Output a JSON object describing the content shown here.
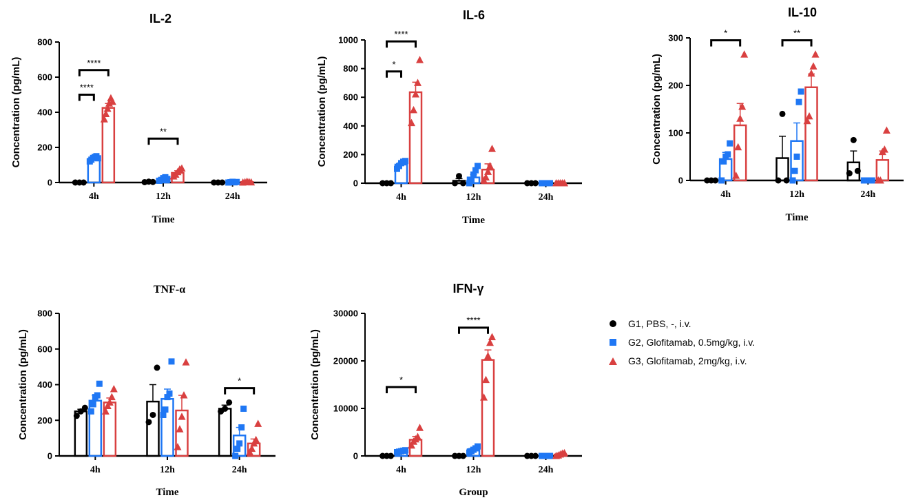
{
  "groups": [
    {
      "name": "G1, PBS, -, i.v.",
      "color": "#000000",
      "marker": "circle"
    },
    {
      "name": "G2, Glofitamab, 0.5mg/kg, i.v.",
      "color": "#1f77f4",
      "marker": "square"
    },
    {
      "name": "G3, Glofitamab, 2mg/kg, i.v.",
      "color": "#d94040",
      "marker": "triangle"
    }
  ],
  "chart_data": [
    {
      "type": "bar",
      "title": "IL-2",
      "title_style": "sans",
      "xlabel": "Time",
      "ylabel": "Concentration (pg/mL)",
      "categories": [
        "4h",
        "12h",
        "24h"
      ],
      "ylim": [
        0,
        800
      ],
      "yticks": [
        0,
        200,
        400,
        600,
        800
      ],
      "series": [
        {
          "name": "G1, PBS, -, i.v.",
          "values": [
            0,
            3,
            0
          ],
          "errors": [
            0,
            0,
            0
          ],
          "points": [
            [
              0,
              0,
              0
            ],
            [
              2,
              5,
              3
            ],
            [
              0,
              0,
              0
            ]
          ]
        },
        {
          "name": "G2, Glofitamab, 0.5mg/kg, i.v.",
          "values": [
            135,
            20,
            2
          ],
          "errors": [
            8,
            8,
            1
          ],
          "points": [
            [
              120,
              130,
              140,
              145,
              150,
              138
            ],
            [
              10,
              15,
              25,
              30,
              20
            ],
            [
              0,
              2,
              4,
              1,
              3
            ]
          ]
        },
        {
          "name": "G3, Glofitamab, 2mg/kg, i.v.",
          "values": [
            425,
            55,
            3
          ],
          "errors": [
            25,
            12,
            1
          ],
          "points": [
            [
              360,
              390,
              420,
              450,
              480,
              460
            ],
            [
              35,
              45,
              60,
              75,
              80
            ],
            [
              0,
              2,
              5,
              3,
              1
            ]
          ]
        }
      ],
      "brackets": [
        {
          "from_cat": 0,
          "from_series": 0,
          "to_cat": 0,
          "to_series": 1,
          "y": 500,
          "label": "****"
        },
        {
          "from_cat": 0,
          "from_series": 0,
          "to_cat": 0,
          "to_series": 2,
          "y": 640,
          "label": "****"
        },
        {
          "from_cat": 1,
          "from_series": 0,
          "to_cat": 1,
          "to_series": 2,
          "y": 250,
          "label": "**"
        }
      ]
    },
    {
      "type": "bar",
      "title": "IL-6",
      "title_style": "sans",
      "xlabel": "Time",
      "ylabel": "Concentration (pg/mL)",
      "categories": [
        "4h",
        "12h",
        "24h"
      ],
      "ylim": [
        0,
        1000
      ],
      "yticks": [
        0,
        200,
        400,
        600,
        800,
        1000
      ],
      "series": [
        {
          "name": "G1, PBS, -, i.v.",
          "values": [
            0,
            17,
            0
          ],
          "errors": [
            0,
            15,
            0
          ],
          "points": [
            [
              0,
              0,
              0
            ],
            [
              0,
              50,
              0
            ],
            [
              0,
              0,
              0
            ]
          ]
        },
        {
          "name": "G2, Glofitamab, 0.5mg/kg, i.v.",
          "values": [
            130,
            40,
            0
          ],
          "errors": [
            15,
            20,
            0
          ],
          "points": [
            [
              100,
              120,
              140,
              150,
              155
            ],
            [
              0,
              20,
              60,
              90,
              120
            ],
            [
              0,
              0,
              0,
              0,
              0
            ]
          ]
        },
        {
          "name": "G3, Glofitamab, 2mg/kg, i.v.",
          "values": [
            635,
            95,
            0
          ],
          "errors": [
            70,
            40,
            0
          ],
          "points": [
            [
              420,
              510,
              620,
              700,
              860
            ],
            [
              20,
              40,
              80,
              120,
              240
            ],
            [
              0,
              0,
              0,
              0,
              0
            ]
          ]
        }
      ],
      "brackets": [
        {
          "from_cat": 0,
          "from_series": 0,
          "to_cat": 0,
          "to_series": 1,
          "y": 780,
          "label": "*"
        },
        {
          "from_cat": 0,
          "from_series": 0,
          "to_cat": 0,
          "to_series": 2,
          "y": 990,
          "label": "****"
        }
      ]
    },
    {
      "type": "bar",
      "title": "IL-10",
      "title_style": "sans",
      "xlabel": "Time",
      "ylabel": "Concentration (pg/mL)",
      "categories": [
        "4h",
        "12h",
        "24h"
      ],
      "ylim": [
        0,
        300
      ],
      "yticks": [
        0,
        100,
        200,
        300
      ],
      "series": [
        {
          "name": "G1, PBS, -, i.v.",
          "values": [
            0,
            47,
            38
          ],
          "errors": [
            0,
            46,
            24
          ],
          "points": [
            [
              0,
              0,
              0
            ],
            [
              0,
              140,
              0
            ],
            [
              15,
              85,
              20
            ]
          ]
        },
        {
          "name": "G2, Glofitamab, 0.5mg/kg, i.v.",
          "values": [
            45,
            83,
            0
          ],
          "errors": [
            14,
            38,
            0
          ],
          "points": [
            [
              0,
              40,
              50,
              55,
              78
            ],
            [
              0,
              20,
              50,
              165,
              187
            ],
            [
              0,
              0,
              0,
              0,
              0
            ]
          ]
        },
        {
          "name": "G3, Glofitamab, 2mg/kg, i.v.",
          "values": [
            116,
            196,
            43
          ],
          "errors": [
            46,
            28,
            19
          ],
          "points": [
            [
              10,
              70,
              130,
              155,
              265
            ],
            [
              125,
              135,
              225,
              240,
              265
            ],
            [
              0,
              0,
              60,
              65,
              105
            ]
          ]
        }
      ],
      "brackets": [
        {
          "from_cat": 0,
          "from_series": 0,
          "to_cat": 0,
          "to_series": 2,
          "y": 295,
          "label": "*"
        },
        {
          "from_cat": 1,
          "from_series": 0,
          "to_cat": 1,
          "to_series": 2,
          "y": 295,
          "label": "**"
        }
      ]
    },
    {
      "type": "bar",
      "title": "TNF-α",
      "title_style": "serif",
      "xlabel": "Time",
      "ylabel": "Concentration (pg/mL)",
      "categories": [
        "4h",
        "12h",
        "24h"
      ],
      "ylim": [
        0,
        800
      ],
      "yticks": [
        0,
        200,
        400,
        600,
        800
      ],
      "series": [
        {
          "name": "G1, PBS, -, i.v.",
          "values": [
            250,
            305,
            265
          ],
          "errors": [
            12,
            95,
            20
          ],
          "points": [
            [
              225,
              250,
              270
            ],
            [
              190,
              230,
              495
            ],
            [
              250,
              265,
              300
            ]
          ]
        },
        {
          "name": "G2, Glofitamab, 0.5mg/kg, i.v.",
          "values": [
            310,
            320,
            115
          ],
          "errors": [
            30,
            55,
            45
          ],
          "points": [
            [
              250,
              290,
              330,
              340,
              405
            ],
            [
              230,
              260,
              330,
              350,
              530
            ],
            [
              0,
              40,
              70,
              160,
              265
            ]
          ]
        },
        {
          "name": "G3, Glofitamab, 2mg/kg, i.v.",
          "values": [
            300,
            255,
            70
          ],
          "errors": [
            25,
            85,
            25
          ],
          "points": [
            [
              250,
              280,
              300,
              330,
              375
            ],
            [
              50,
              150,
              220,
              340,
              525
            ],
            [
              20,
              40,
              70,
              90,
              180
            ]
          ]
        }
      ],
      "brackets": [
        {
          "from_cat": 2,
          "from_series": 0,
          "to_cat": 2,
          "to_series": 2,
          "y": 380,
          "label": "*"
        }
      ]
    },
    {
      "type": "bar",
      "title": "IFN-γ",
      "title_style": "sans",
      "xlabel": "Group",
      "ylabel": "Concentration (pg/mL)",
      "categories": [
        "4h",
        "12h",
        "24h"
      ],
      "ylim": [
        0,
        30000
      ],
      "yticks": [
        0,
        10000,
        20000,
        30000
      ],
      "series": [
        {
          "name": "G1, PBS, -, i.v.",
          "values": [
            0,
            0,
            0
          ],
          "errors": [
            0,
            0,
            0
          ],
          "points": [
            [
              0,
              0,
              0
            ],
            [
              0,
              0,
              0
            ],
            [
              0,
              0,
              0
            ]
          ]
        },
        {
          "name": "G2, Glofitamab, 0.5mg/kg, i.v.",
          "values": [
            1000,
            1400,
            0
          ],
          "errors": [
            150,
            300,
            0
          ],
          "points": [
            [
              800,
              900,
              1000,
              1100,
              1200
            ],
            [
              700,
              1000,
              1300,
              1600,
              2000
            ],
            [
              0,
              0,
              0,
              0,
              0
            ]
          ]
        },
        {
          "name": "G3, Glofitamab, 2mg/kg, i.v.",
          "values": [
            3400,
            20200,
            300
          ],
          "errors": [
            700,
            2100,
            100
          ],
          "points": [
            [
              2200,
              3000,
              3500,
              4000,
              5900
            ],
            [
              12300,
              16000,
              21000,
              23800,
              25000
            ],
            [
              0,
              100,
              300,
              500,
              600
            ]
          ]
        }
      ],
      "brackets": [
        {
          "from_cat": 0,
          "from_series": 0,
          "to_cat": 0,
          "to_series": 2,
          "y": 14500,
          "label": "*"
        },
        {
          "from_cat": 1,
          "from_series": 0,
          "to_cat": 1,
          "to_series": 2,
          "y": 27000,
          "label": "****"
        }
      ]
    }
  ]
}
